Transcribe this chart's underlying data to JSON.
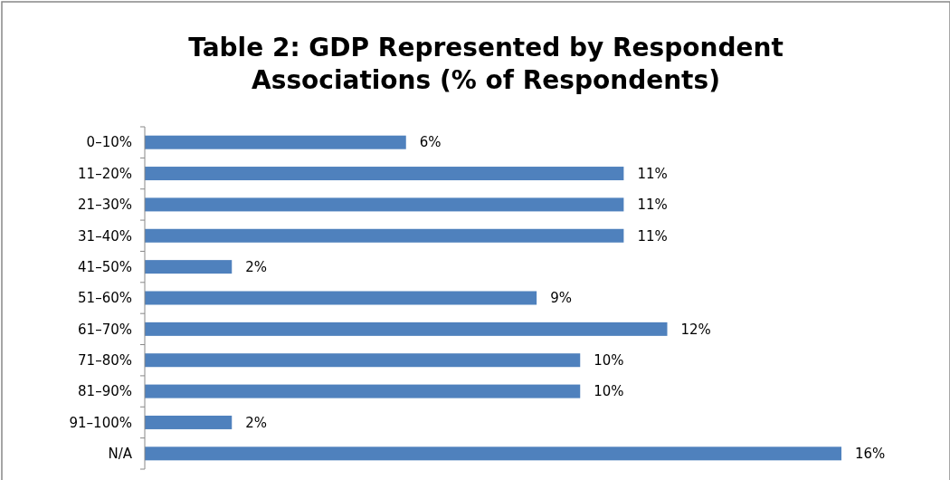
{
  "chart_data": {
    "type": "bar",
    "orientation": "horizontal",
    "title": "Table 2: GDP Represented by Respondent Associations (% of Respondents)",
    "categories": [
      "0–10%",
      "11–20%",
      "21–30%",
      "31–40%",
      "41–50%",
      "51–60%",
      "61–70%",
      "71–80%",
      "81–90%",
      "91–100%",
      "N/A"
    ],
    "values": [
      6,
      11,
      11,
      11,
      2,
      9,
      12,
      10,
      10,
      2,
      16
    ],
    "value_labels": [
      "6%",
      "11%",
      "11%",
      "11%",
      "2%",
      "9%",
      "12%",
      "10%",
      "10%",
      "2%",
      "16%"
    ],
    "color": "#4f81bd"
  }
}
